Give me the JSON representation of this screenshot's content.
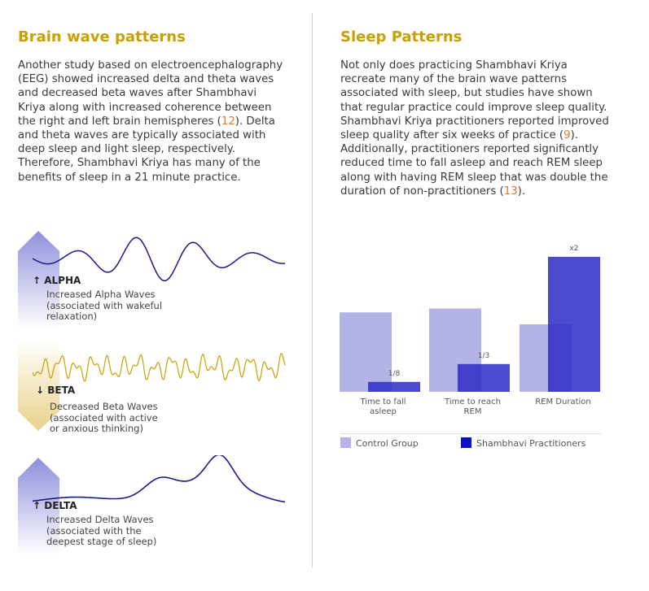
{
  "left": {
    "title": "Brain wave patterns",
    "paragraph_before_ref": "Another study based on electroencephalography (EEG) showed increased delta and theta waves and decreased beta waves after Shambhavi Kriya along with increased coherence between the right and left brain hemispheres (",
    "ref1": "12",
    "paragraph_after_ref": "). Delta and theta waves are typically associated with deep sleep and light sleep, respectively. Therefore, Shambhavi Kriya has many of the benefits of sleep in a 21 minute practice.",
    "waves": [
      {
        "label": "↑ ALPHA",
        "desc_lines": [
          "Increased Alpha Waves",
          "(associated with wakeful",
          "relaxation)"
        ]
      },
      {
        "label": "↓ BETA",
        "desc_lines": [
          "Decreased Beta Waves",
          "(associated with active",
          "or anxious thinking)"
        ]
      },
      {
        "label": "↑ DELTA",
        "desc_lines": [
          "Increased Delta Waves",
          "(associated with the",
          "deepest stage of sleep)"
        ]
      }
    ]
  },
  "right": {
    "title": "Sleep Patterns",
    "paragraph_part1": "Not only does practicing Shambhavi Kriya recreate many of the brain wave patterns associated with sleep, but studies have shown that regular practice could improve sleep quality. Shambhavi Kriya practitioners reported improved sleep quality after six weeks of practice (",
    "ref2": "9",
    "paragraph_part2": "). Additionally, practitioners reported significantly reduced time to fall asleep and reach REM sleep along with having REM sleep that was double the duration of non-practitioners (",
    "ref3": "13",
    "paragraph_part3": ")."
  },
  "colors": {
    "heading": "#c9a000",
    "ref": "#e07a30",
    "alpha_wave": "#1a1a8c",
    "beta_wave": "#c9a000",
    "delta_wave": "#1a1a8c",
    "control": "#b3b3e6",
    "practitioner": "#2b2bc8"
  },
  "chart_data": {
    "type": "bar",
    "categories": [
      "Time to fall asleep",
      "Time to reach REM",
      "REM Duration"
    ],
    "category_lines": [
      [
        "Time to fall",
        "asleep"
      ],
      [
        "Time to reach",
        "REM"
      ],
      [
        "REM Duration"
      ]
    ],
    "series": [
      {
        "name": "Control Group",
        "values": [
          1.0,
          1.05,
          0.85
        ]
      },
      {
        "name": "Shambhavi Practitioners",
        "values": [
          0.125,
          0.35,
          1.7
        ]
      }
    ],
    "annotations": [
      "1/8",
      "1/3",
      "x2"
    ],
    "ylim": [
      0,
      1.75
    ],
    "legend": "bottom"
  }
}
